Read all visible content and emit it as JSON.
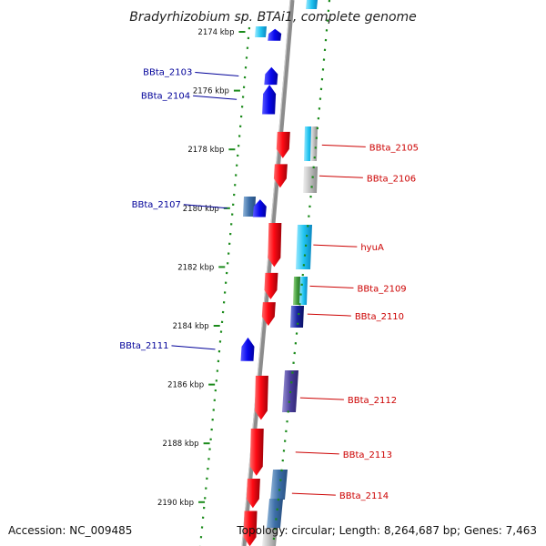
{
  "title": "Bradyrhizobium sp. BTAi1, complete genome",
  "footer": {
    "accession": "Accession: NC_009485",
    "topology": "Topology: circular; Length: 8,264,687 bp; Genes: 7,463"
  },
  "colors": {
    "forward_gene": "#e8141c",
    "reverse_gene": "#1a1af0",
    "forward_label": "#cc0000",
    "reverse_label": "#000099",
    "tick": "#1a8a1a",
    "backbone": "#8c8c8c"
  },
  "kbp_ticks": [
    {
      "label": "2174 kbp",
      "kbp": 2174
    },
    {
      "label": "2176 kbp",
      "kbp": 2176
    },
    {
      "label": "2178 kbp",
      "kbp": 2178
    },
    {
      "label": "2180 kbp",
      "kbp": 2180
    },
    {
      "label": "2182 kbp",
      "kbp": 2182
    },
    {
      "label": "2184 kbp",
      "kbp": 2184
    },
    {
      "label": "2186 kbp",
      "kbp": 2186
    },
    {
      "label": "2188 kbp",
      "kbp": 2188
    },
    {
      "label": "2190 kbp",
      "kbp": 2190
    }
  ],
  "genes": [
    {
      "name": "",
      "strand": "reverse",
      "start_kbp": 2173.9,
      "end_kbp": 2174.3
    },
    {
      "name": "BBta_2103",
      "strand": "reverse",
      "start_kbp": 2175.2,
      "end_kbp": 2175.8
    },
    {
      "name": "BBta_2104",
      "strand": "reverse",
      "start_kbp": 2175.8,
      "end_kbp": 2176.8
    },
    {
      "name": "BBta_2105",
      "strand": "forward",
      "start_kbp": 2177.4,
      "end_kbp": 2178.3
    },
    {
      "name": "BBta_2106",
      "strand": "forward",
      "start_kbp": 2178.5,
      "end_kbp": 2179.3
    },
    {
      "name": "BBta_2107",
      "strand": "reverse",
      "start_kbp": 2179.7,
      "end_kbp": 2180.3
    },
    {
      "name": "hyuA",
      "strand": "forward",
      "start_kbp": 2180.5,
      "end_kbp": 2182.0
    },
    {
      "name": "BBta_2109",
      "strand": "forward",
      "start_kbp": 2182.2,
      "end_kbp": 2183.1
    },
    {
      "name": "BBta_2110",
      "strand": "forward",
      "start_kbp": 2183.2,
      "end_kbp": 2184.0
    },
    {
      "name": "BBta_2111",
      "strand": "reverse",
      "start_kbp": 2184.4,
      "end_kbp": 2185.2
    },
    {
      "name": "BBta_2112",
      "strand": "forward",
      "start_kbp": 2185.7,
      "end_kbp": 2187.2
    },
    {
      "name": "BBta_2113",
      "strand": "forward",
      "start_kbp": 2187.5,
      "end_kbp": 2189.1
    },
    {
      "name": "BBta_2114",
      "strand": "forward",
      "start_kbp": 2189.2,
      "end_kbp": 2190.2
    },
    {
      "name": "",
      "strand": "forward",
      "start_kbp": 2190.3,
      "end_kbp": 2191.5
    }
  ]
}
